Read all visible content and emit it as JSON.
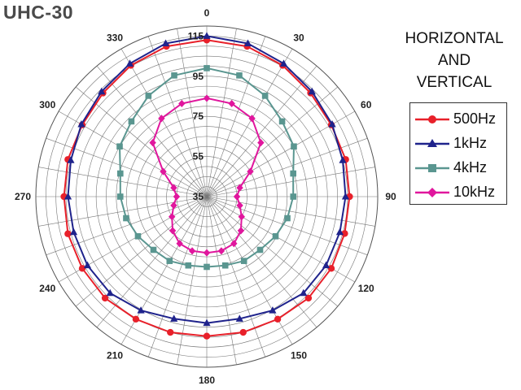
{
  "chart_data": {
    "type": "polar-line",
    "title": "UHC-30",
    "subtitle": [
      "HORIZONTAL",
      "AND",
      "VERTICAL"
    ],
    "angle_labels": [
      "0",
      "30",
      "60",
      "90",
      "120",
      "150",
      "180",
      "210",
      "240",
      "270",
      "300",
      "330"
    ],
    "radial_labels": [
      "35",
      "55",
      "75",
      "95",
      "115"
    ],
    "radial_range": [
      35,
      120
    ],
    "angles_deg": [
      0,
      15,
      30,
      45,
      60,
      75,
      90,
      105,
      120,
      135,
      150,
      165,
      180,
      195,
      210,
      225,
      240,
      255,
      270,
      285,
      300,
      315,
      330,
      345
    ],
    "legend_position": "right",
    "grid": true,
    "series": [
      {
        "name": "500Hz",
        "color": "#e8202a",
        "marker": "circle",
        "values": [
          113,
          112.5,
          110.5,
          108,
          106.5,
          106.5,
          106,
          106,
          106.5,
          106.5,
          105.5,
          105,
          104.5,
          105,
          105.5,
          106.5,
          106.5,
          106.5,
          106,
          106.5,
          106.5,
          108,
          110.5,
          112.5
        ]
      },
      {
        "name": "1kHz",
        "color": "#1f238c",
        "marker": "triangle",
        "values": [
          115,
          114,
          111.5,
          109,
          107,
          105,
          104,
          103.5,
          103.5,
          103,
          100.5,
          98,
          98,
          98,
          100.5,
          103,
          103.5,
          103.5,
          104,
          105,
          107,
          109,
          111.5,
          114
        ]
      },
      {
        "name": "4kHz",
        "color": "#5a9690",
        "marker": "square",
        "values": [
          99,
          97.5,
          93,
          88,
          85,
          79.5,
          78,
          76.5,
          74.5,
          72.5,
          72,
          70.5,
          70,
          70.5,
          72,
          72.5,
          74.5,
          76.5,
          78,
          79.5,
          85,
          88,
          93,
          97.5
        ]
      },
      {
        "name": "10kHz",
        "color": "#e0179d",
        "marker": "diamond",
        "values": [
          84,
          83,
          80,
          73,
          60,
          52,
          50,
          52,
          55,
          59,
          62,
          63,
          63,
          63,
          62,
          59,
          55,
          52,
          50,
          52,
          60,
          73,
          80,
          83
        ]
      }
    ]
  }
}
